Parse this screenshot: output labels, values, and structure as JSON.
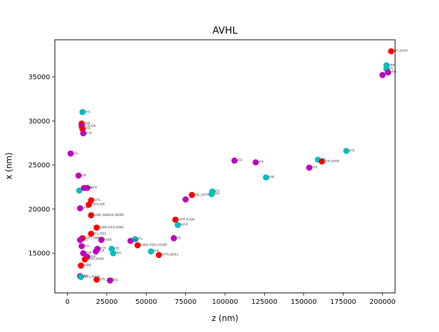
{
  "chart_data": {
    "type": "scatter",
    "title": "AVHL",
    "xlabel": "z (nm)",
    "ylabel": "x (nm)",
    "xlim": [
      -8000,
      208000
    ],
    "ylim": [
      10500,
      39200
    ],
    "xticks": [
      0,
      25000,
      50000,
      75000,
      100000,
      125000,
      150000,
      175000,
      200000
    ],
    "yticks": [
      15000,
      20000,
      25000,
      30000,
      35000
    ],
    "grid": false,
    "colors": {
      "red": "#ff0000",
      "cyan": "#00bfbf",
      "magenta": "#bf00bf"
    },
    "points": [
      {
        "x": 205500,
        "y": 37900,
        "c": "red",
        "label": "VFL,AVFR"
      },
      {
        "x": 202500,
        "y": 36300,
        "c": "cyan",
        "label": "VBR"
      },
      {
        "x": 202500,
        "y": 35900,
        "c": "cyan",
        "label": "VFL"
      },
      {
        "x": 203500,
        "y": 35500,
        "c": "magenta",
        "label": "VFR"
      },
      {
        "x": 200000,
        "y": 35200,
        "c": "magenta",
        "label": ""
      },
      {
        "x": 177000,
        "y": 26600,
        "c": "cyan",
        "label": "VFR"
      },
      {
        "x": 159000,
        "y": 25600,
        "c": "cyan",
        "label": "VFR"
      },
      {
        "x": 161500,
        "y": 25400,
        "c": "red",
        "label": "VFR,AVHR"
      },
      {
        "x": 153500,
        "y": 24700,
        "c": "magenta",
        "label": "VFR"
      },
      {
        "x": 106000,
        "y": 25500,
        "c": "magenta",
        "label": "VFR"
      },
      {
        "x": 119500,
        "y": 25300,
        "c": "magenta",
        "label": "VFR"
      },
      {
        "x": 126000,
        "y": 23600,
        "c": "cyan",
        "label": "VHR"
      },
      {
        "x": 92000,
        "y": 22000,
        "c": "cyan",
        "label": "VFL"
      },
      {
        "x": 91500,
        "y": 21700,
        "c": "cyan",
        "label": "VFR"
      },
      {
        "x": 79000,
        "y": 21600,
        "c": "red",
        "label": "VBL,AVFR"
      },
      {
        "x": 75000,
        "y": 21100,
        "c": "magenta",
        "label": ""
      },
      {
        "x": 9500,
        "y": 31000,
        "c": "cyan",
        "label": "VHL"
      },
      {
        "x": 9000,
        "y": 29700,
        "c": "red",
        "label": "VHR"
      },
      {
        "x": 9000,
        "y": 29400,
        "c": "magenta",
        "label": "VFR,RIR"
      },
      {
        "x": 9500,
        "y": 29100,
        "c": "red",
        "label": "VFR"
      },
      {
        "x": 10000,
        "y": 28600,
        "c": "magenta",
        "label": "VCR"
      },
      {
        "x": 2000,
        "y": 26300,
        "c": "magenta",
        "label": "VUL"
      },
      {
        "x": 7000,
        "y": 23800,
        "c": "magenta",
        "label": "VHL"
      },
      {
        "x": 7500,
        "y": 22100,
        "c": "cyan",
        "label": ""
      },
      {
        "x": 10500,
        "y": 22400,
        "c": "magenta",
        "label": "VFR"
      },
      {
        "x": 12500,
        "y": 22400,
        "c": "magenta",
        "label": "AVFR"
      },
      {
        "x": 15000,
        "y": 21000,
        "c": "red",
        "label": "AVFL"
      },
      {
        "x": 13500,
        "y": 20500,
        "c": "red",
        "label": "AVFR,RIR"
      },
      {
        "x": 8000,
        "y": 20100,
        "c": "magenta",
        "label": "VFR"
      },
      {
        "x": 15000,
        "y": 19300,
        "c": "red",
        "label": "AVBR,SMBDR,AWBR"
      },
      {
        "x": 18500,
        "y": 17900,
        "c": "red",
        "label": "AVBR,RIFR,RIMR"
      },
      {
        "x": 15000,
        "y": 17200,
        "c": "red",
        "label": "VFL,AVJL"
      },
      {
        "x": 9500,
        "y": 16700,
        "c": "red",
        "label": "AVFL,SMBDR"
      },
      {
        "x": 8000,
        "y": 16500,
        "c": "magenta",
        "label": "VFL"
      },
      {
        "x": 21500,
        "y": 16500,
        "c": "magenta",
        "label": "AVBR"
      },
      {
        "x": 68500,
        "y": 18800,
        "c": "red",
        "label": "AVFR,PVQR"
      },
      {
        "x": 70000,
        "y": 18200,
        "c": "cyan",
        "label": "AVFR"
      },
      {
        "x": 67500,
        "y": 16700,
        "c": "magenta",
        "label": "VFL"
      },
      {
        "x": 40000,
        "y": 16400,
        "c": "magenta",
        "label": "VBL"
      },
      {
        "x": 43000,
        "y": 16600,
        "c": "cyan",
        "label": "VFL"
      },
      {
        "x": 44500,
        "y": 15900,
        "c": "red",
        "label": "AVBD,VD01,PVQR"
      },
      {
        "x": 53000,
        "y": 15200,
        "c": "cyan",
        "label": "VFR"
      },
      {
        "x": 58000,
        "y": 14800,
        "c": "red",
        "label": "AVFR,DD01"
      },
      {
        "x": 9000,
        "y": 15800,
        "c": "magenta",
        "label": "VHL"
      },
      {
        "x": 28000,
        "y": 15500,
        "c": "cyan",
        "label": "VDL"
      },
      {
        "x": 29000,
        "y": 15000,
        "c": "cyan",
        "label": "VDL"
      },
      {
        "x": 19000,
        "y": 15500,
        "c": "magenta",
        "label": "VCR"
      },
      {
        "x": 18000,
        "y": 15200,
        "c": "magenta",
        "label": "VCR"
      },
      {
        "x": 10000,
        "y": 15000,
        "c": "magenta",
        "label": "VHR"
      },
      {
        "x": 12500,
        "y": 14600,
        "c": "magenta",
        "label": "VHR"
      },
      {
        "x": 11000,
        "y": 14300,
        "c": "red",
        "label": "AVFR,AVBR"
      },
      {
        "x": 8500,
        "y": 13600,
        "c": "red",
        "label": "AVBR"
      },
      {
        "x": 8000,
        "y": 12400,
        "c": "magenta",
        "label": "VDL"
      },
      {
        "x": 8500,
        "y": 12300,
        "c": "cyan",
        "label": "AVFL,PVQR"
      },
      {
        "x": 18500,
        "y": 12000,
        "c": "red",
        "label": "AVFL,AVBL"
      },
      {
        "x": 27000,
        "y": 11900,
        "c": "magenta",
        "label": "VFR"
      }
    ]
  }
}
